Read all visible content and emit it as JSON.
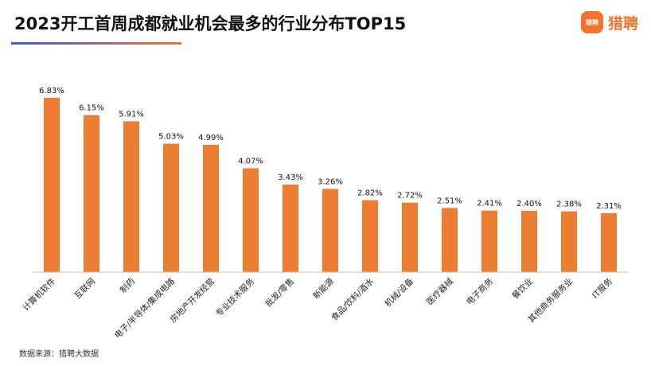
{
  "header": {
    "title": "2023开工首周成都就业机会最多的行业分布TOP15",
    "logo_badge_text": "猎聘",
    "logo_text": "猎聘"
  },
  "colors": {
    "bar": "#ED7D31",
    "brand": "#F5722E",
    "rule_start": "#3B5BDB",
    "rule_end": "#F5722E",
    "axis": "#BFBFBF"
  },
  "footer": {
    "source": "数据来源：猎聘大数据"
  },
  "chart_data": {
    "type": "bar",
    "categories": [
      "计算机软件",
      "互联网",
      "制药",
      "电子/半导体/集成电路",
      "房地产开发经营",
      "专业技术服务",
      "批发/零售",
      "新能源",
      "食品/饮料/酒水",
      "机械/设备",
      "医疗器械",
      "电子商务",
      "餐饮业",
      "其他商务服务业",
      "IT服务"
    ],
    "values": [
      6.83,
      6.15,
      5.91,
      5.03,
      4.99,
      4.07,
      3.43,
      3.26,
      2.82,
      2.72,
      2.51,
      2.41,
      2.4,
      2.38,
      2.31
    ],
    "value_labels": [
      "6.83%",
      "6.15%",
      "5.91%",
      "5.03%",
      "4.99%",
      "4.07%",
      "3.43%",
      "3.26%",
      "2.82%",
      "2.72%",
      "2.51%",
      "2.41%",
      "2.40%",
      "2.38%",
      "2.31%"
    ],
    "title": "2023开工首周成都就业机会最多的行业分布TOP15",
    "xlabel": "",
    "ylabel": "",
    "ylim": [
      0,
      7.7
    ],
    "grid": false,
    "legend": "none"
  }
}
